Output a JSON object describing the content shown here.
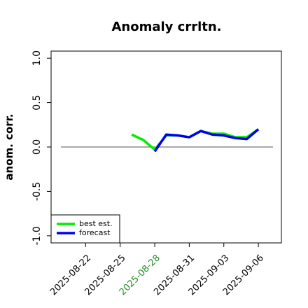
{
  "chart_data": {
    "type": "line",
    "title": "Anomaly crrltn.",
    "ylabel": "anom. corr.",
    "x": [
      "2025-08-26",
      "2025-08-27",
      "2025-08-28",
      "2025-08-29",
      "2025-08-30",
      "2025-08-31",
      "2025-09-01",
      "2025-09-02",
      "2025-09-03",
      "2025-09-04",
      "2025-09-05",
      "2025-09-06"
    ],
    "series": [
      {
        "name": "best est.",
        "color": "#00ee00",
        "values": [
          0.14,
          0.08,
          -0.03,
          0.13,
          0.13,
          0.11,
          0.18,
          0.15,
          0.15,
          0.11,
          0.11,
          0.2
        ]
      },
      {
        "name": "forecast",
        "color": "#0000ee",
        "values": [
          null,
          null,
          -0.05,
          0.14,
          0.13,
          0.11,
          0.18,
          0.14,
          0.13,
          0.1,
          0.09,
          0.2
        ]
      }
    ],
    "xlim": [
      "2025-08-19",
      "2025-09-08"
    ],
    "xticks": [
      "2025-08-22",
      "2025-08-25",
      "2025-08-28",
      "2025-08-31",
      "2025-09-03",
      "2025-09-06"
    ],
    "highlight_xtick": "2025-08-28",
    "highlight_color": "#228b22",
    "ylim": [
      -1.08,
      1.08
    ],
    "yticks": [
      {
        "value": -1,
        "label": "-1.0"
      },
      {
        "value": -0.5,
        "label": "-0.5"
      },
      {
        "value": 0,
        "label": "0.0"
      },
      {
        "value": 0.5,
        "label": "0.5"
      },
      {
        "value": 1,
        "label": "1.0"
      }
    ],
    "reference_line": 0,
    "legend": "lower left"
  }
}
